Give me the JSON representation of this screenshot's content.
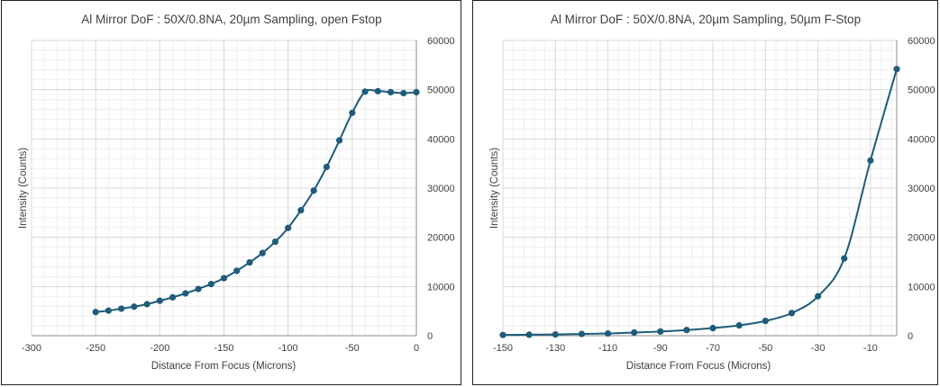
{
  "colors": {
    "series": "#1f5c7a",
    "grid_major": "#d9d9d9",
    "grid_minor": "#efefef",
    "axis": "#8c8c8c"
  },
  "chart_data": [
    {
      "type": "line",
      "title": "Al Mirror DoF : 50X/0.8NA, 20µm Sampling, open Fstop",
      "xlabel": "Distance From Focus (Microns)",
      "ylabel": "Intensity (Counts)",
      "xlim": [
        -300,
        0
      ],
      "ylim": [
        0,
        60000
      ],
      "x_ticks": [
        -300,
        -250,
        -200,
        -150,
        -100,
        -50,
        0
      ],
      "x_tick_labels": [
        "-300",
        "-250",
        "-200",
        "-150",
        "-100",
        "-50",
        "0"
      ],
      "y_ticks": [
        0,
        10000,
        20000,
        30000,
        40000,
        50000,
        60000
      ],
      "y_tick_labels": [
        "0",
        "10000",
        "20000",
        "30000",
        "40000",
        "50000",
        "60000"
      ],
      "y_axis_side": "right",
      "grid": true,
      "series": [
        {
          "x": [
            -250,
            -240,
            -230,
            -220,
            -210,
            -200,
            -190,
            -180,
            -170,
            -160,
            -150,
            -140,
            -130,
            -120,
            -110,
            -100,
            -90,
            -80,
            -70,
            -60,
            -50,
            -40,
            -30,
            -20,
            -10,
            0
          ],
          "y": [
            4800,
            5100,
            5500,
            5900,
            6400,
            7100,
            7800,
            8600,
            9500,
            10500,
            11700,
            13200,
            14900,
            16800,
            19100,
            21900,
            25500,
            29500,
            34300,
            39700,
            45300,
            49600,
            49700,
            49500,
            49300,
            49500
          ]
        }
      ]
    },
    {
      "type": "line",
      "title": "Al Mirror DoF : 50X/0.8NA, 20µm Sampling, 50µm F-Stop",
      "xlabel": "Distance From Focus (Microns)",
      "ylabel": "Intensity (Counts)",
      "xlim": [
        -150,
        0
      ],
      "ylim": [
        0,
        60000
      ],
      "x_ticks": [
        -150,
        -130,
        -110,
        -90,
        -70,
        -50,
        -30,
        -10
      ],
      "x_tick_labels": [
        "-150",
        "-130",
        "-110",
        "-90",
        "-70",
        "-50",
        "-30",
        "-10"
      ],
      "y_ticks": [
        0,
        10000,
        20000,
        30000,
        40000,
        50000,
        60000
      ],
      "y_tick_labels": [
        "0",
        "10000",
        "20000",
        "30000",
        "40000",
        "50000",
        "60000"
      ],
      "y_axis_side": "right",
      "grid": true,
      "series": [
        {
          "x": [
            -150,
            -140,
            -130,
            -120,
            -110,
            -100,
            -90,
            -80,
            -70,
            -60,
            -50,
            -40,
            -30,
            -20,
            -10,
            0
          ],
          "y": [
            150,
            200,
            250,
            350,
            450,
            650,
            850,
            1150,
            1550,
            2100,
            3000,
            4600,
            8000,
            15700,
            35600,
            54200
          ]
        }
      ]
    }
  ]
}
